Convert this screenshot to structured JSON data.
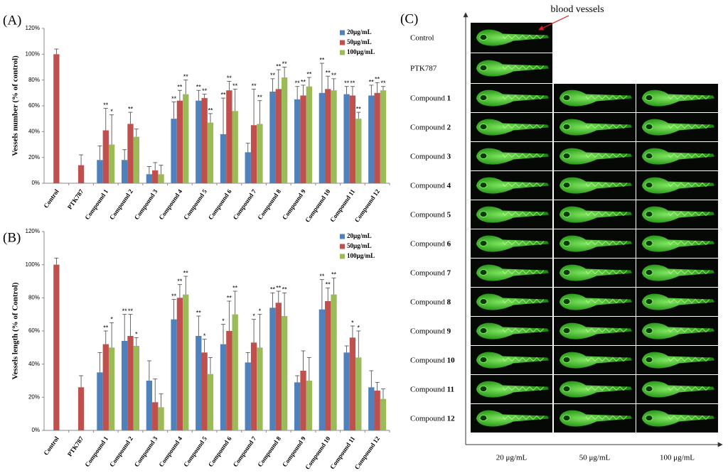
{
  "chart_data": [
    {
      "type": "bar",
      "panel_label": "(A)",
      "ylabel": "Vessels number   (% of control)",
      "categories": [
        "Control",
        "PTK787",
        "Compound 1",
        "Compound 2",
        "Compound 3",
        "Compound 4",
        "Compound 5",
        "Compound 6",
        "Compound 7",
        "Compound 8",
        "Compound 9",
        "Compound 10",
        "Compound 11",
        "Compound 12"
      ],
      "series": [
        {
          "name": "20μg/mL",
          "color": "#4f81bd",
          "values": [
            null,
            null,
            18,
            18,
            7,
            50,
            64,
            38,
            24,
            71,
            65,
            70,
            69,
            68
          ],
          "errors": [
            null,
            null,
            11,
            8,
            6,
            13,
            8,
            28,
            7,
            10,
            10,
            23,
            6,
            8
          ],
          "significance": [
            null,
            null,
            null,
            null,
            null,
            "**",
            "**",
            "**",
            null,
            "**",
            "**",
            "**",
            "**",
            "**"
          ]
        },
        {
          "name": "50μg/mL",
          "color": "#c0504d",
          "values": [
            100,
            14,
            41,
            46,
            10,
            64,
            66,
            72,
            45,
            73,
            68,
            73,
            68,
            70
          ],
          "errors": [
            4,
            8,
            17,
            9,
            6,
            8,
            3,
            7,
            28,
            15,
            8,
            10,
            7,
            8
          ],
          "significance": [
            null,
            null,
            "**",
            "**",
            null,
            "**",
            "**",
            "**",
            "**",
            "**",
            "**",
            "**",
            "**",
            "**"
          ]
        },
        {
          "name": "100μg/mL",
          "color": "#9bbb59",
          "values": [
            null,
            null,
            30,
            36,
            7,
            69,
            47,
            56,
            46,
            82,
            75,
            72,
            50,
            72
          ],
          "errors": [
            null,
            null,
            23,
            6,
            7,
            11,
            7,
            17,
            18,
            8,
            7,
            9,
            5,
            3
          ],
          "significance": [
            null,
            null,
            "*",
            null,
            null,
            "**",
            "**",
            "**",
            "**",
            "**",
            "**",
            "**",
            "**",
            "**"
          ]
        }
      ],
      "ylim": [
        0,
        120
      ],
      "yticks": [
        {
          "value": 0,
          "label": "0%"
        },
        {
          "value": 20,
          "label": "20%"
        },
        {
          "value": 40,
          "label": "40%"
        },
        {
          "value": 60,
          "label": "60%"
        },
        {
          "value": 80,
          "label": "80%"
        },
        {
          "value": 100,
          "label": "100%"
        },
        {
          "value": 120,
          "label": "120%"
        }
      ],
      "legend": "upper right"
    },
    {
      "type": "bar",
      "panel_label": "(B)",
      "ylabel": "Vessels  length (% of Control)",
      "categories": [
        "Control",
        "PTK787",
        "Compound 1",
        "Compound 2",
        "Compound 3",
        "Compound 4",
        "Compound 5",
        "Compound 6",
        "Compound 7",
        "Compound 8",
        "Compound 9",
        "Compound 10",
        "Compound 11",
        "Compound 12"
      ],
      "series": [
        {
          "name": "20μg/mL",
          "color": "#4f81bd",
          "values": [
            null,
            null,
            35,
            54,
            30,
            67,
            57,
            52,
            41,
            74,
            29,
            73,
            47,
            26
          ],
          "errors": [
            null,
            null,
            12,
            16,
            12,
            12,
            12,
            12,
            6,
            9,
            4,
            18,
            4,
            10
          ],
          "significance": [
            null,
            null,
            null,
            "**",
            null,
            "**",
            "**",
            "*",
            null,
            "**",
            null,
            "**",
            null,
            null
          ]
        },
        {
          "name": "50μg/mL",
          "color": "#c0504d",
          "values": [
            100,
            26,
            52,
            57,
            17,
            80,
            47,
            60,
            53,
            77,
            36,
            78,
            56,
            24
          ],
          "errors": [
            4,
            7,
            8,
            13,
            14,
            8,
            8,
            18,
            14,
            7,
            12,
            8,
            7,
            5
          ],
          "significance": [
            null,
            null,
            "**",
            "**",
            null,
            "**",
            "*",
            "**",
            "*",
            "**",
            null,
            "**",
            "*",
            null
          ]
        },
        {
          "name": "100μg/mL",
          "color": "#9bbb59",
          "values": [
            null,
            null,
            50,
            51,
            14,
            82,
            34,
            70,
            50,
            69,
            30,
            82,
            44,
            19
          ],
          "errors": [
            null,
            null,
            15,
            5,
            8,
            11,
            10,
            14,
            20,
            14,
            14,
            10,
            16,
            6
          ],
          "significance": [
            null,
            null,
            "*",
            "*",
            null,
            "**",
            null,
            "**",
            "*",
            "**",
            null,
            "**",
            "*",
            null
          ]
        }
      ],
      "ylim": [
        0,
        120
      ],
      "yticks": [
        {
          "value": 0,
          "label": "0%"
        },
        {
          "value": 20,
          "label": "20%"
        },
        {
          "value": 40,
          "label": "40%"
        },
        {
          "value": 60,
          "label": "60%"
        },
        {
          "value": 80,
          "label": "80%"
        },
        {
          "value": 100,
          "label": "100%"
        },
        {
          "value": 120,
          "label": "120%"
        }
      ],
      "legend": "upper right"
    }
  ],
  "panel_c": {
    "panel_label": "(C)",
    "annotation": "blood vessels",
    "rows": [
      {
        "label": "Control"
      },
      {
        "label": "PTK787"
      },
      {
        "label": "Compound",
        "number": "1"
      },
      {
        "label": "Compound",
        "number": "2"
      },
      {
        "label": "Compound",
        "number": "3"
      },
      {
        "label": "Compound",
        "number": "4"
      },
      {
        "label": "Compound",
        "number": "5"
      },
      {
        "label": "Compound",
        "number": "6"
      },
      {
        "label": "Compound",
        "number": "7"
      },
      {
        "label": "Compound",
        "number": "8"
      },
      {
        "label": "Compound",
        "number": "9"
      },
      {
        "label": "Compound",
        "number": "10"
      },
      {
        "label": "Compound",
        "number": "11"
      },
      {
        "label": "Compound",
        "number": "12"
      }
    ],
    "columns": [
      "20 μg/mL",
      "50 μg/mL",
      "100 μg/mL"
    ]
  }
}
